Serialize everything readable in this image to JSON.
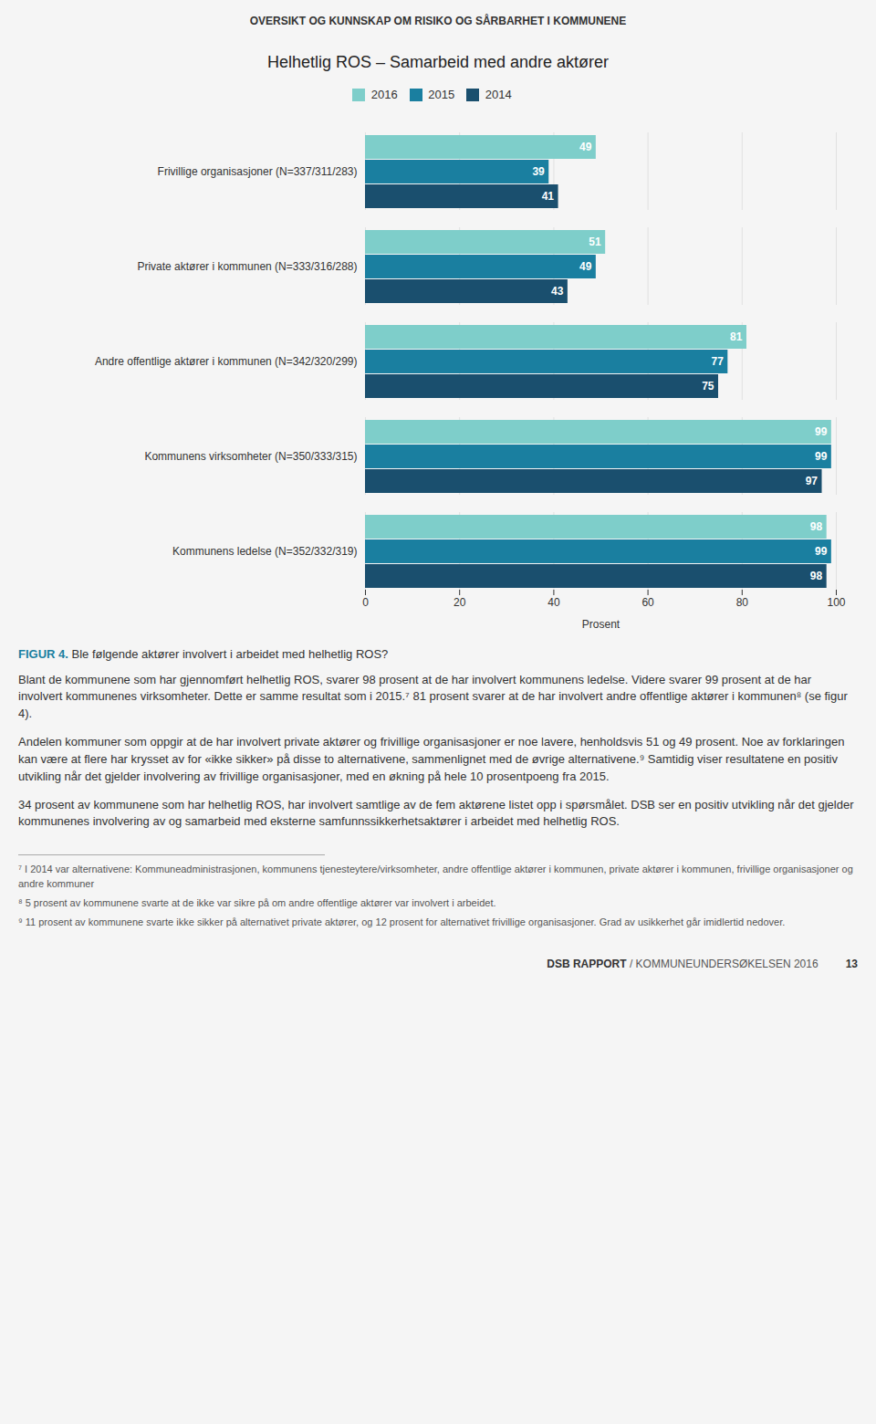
{
  "chart_data": {
    "type": "bar",
    "orientation": "horizontal",
    "title": "Helhetlig ROS – Samarbeid med andre aktører",
    "categories": [
      "Kommunens ledelse (N=352/332/319)",
      "Kommunens virksomheter (N=350/333/315)",
      "Andre offentlige aktører i kommunen (N=342/320/299)",
      "Private aktører i kommunen (N=333/316/288)",
      "Frivillige organisasjoner (N=337/311/283)"
    ],
    "series": [
      {
        "name": "2016",
        "color": "#7ececa",
        "values": [
          98,
          99,
          81,
          51,
          49
        ]
      },
      {
        "name": "2015",
        "color": "#1a7fa0",
        "values": [
          99,
          99,
          77,
          49,
          39
        ]
      },
      {
        "name": "2014",
        "color": "#1a4f6e",
        "values": [
          98,
          97,
          75,
          43,
          41
        ]
      }
    ],
    "xlim": [
      0,
      100
    ],
    "xticks": [
      0,
      20,
      40,
      60,
      80,
      100
    ],
    "xlabel": "Prosent",
    "grid": true,
    "legend": "top",
    "data_labels": true,
    "annotations": [
      "OVERSIKT OG KUNNSKAP OM RISIKO OG SÅRBARHET I KOMMUNENE",
      "FIGUR 4.",
      " Ble følgende aktører involvert i arbeidet med helhetlig ROS?",
      "Blant de kommunene som har gjennomført helhetlig ROS, svarer 98 prosent at de har involvert kommunens ledelse. Videre svarer 99 prosent at de har involvert kommunenes virksomheter. Dette er samme resultat som i 2015.⁷ 81 prosent svarer at de har involvert andre offentlige aktører i kommunen⁸ (se figur 4).",
      "Andelen kommuner som oppgir at de har involvert private aktører og frivillige organisasjoner er noe lavere, henholdsvis 51 og 49 prosent. Noe av forklaringen kan være at flere har krysset av for «ikke sikker» på disse to alternativene, sammenlignet med de øvrige alternativene.⁹ Samtidig viser resultatene en positiv utvikling når det gjelder involvering av frivillige organisasjoner, med en økning på hele 10 prosentpoeng fra 2015.",
      "34 prosent av kommunene som har helhetlig ROS, har involvert samtlige av de fem aktørene listet opp i spørsmålet. DSB ser en positiv utvikling når det gjelder kommunenes involvering av og samarbeid med eksterne samfunnssikkerhetsaktører i arbeidet med helhetlig ROS.",
      "⁷  I 2014 var alternativene: Kommuneadministrasjonen, kommunens tjenesteytere/virksomheter, andre offentlige aktører i kommunen, private aktører i kommunen, frivillige organisasjoner og andre kommuner",
      "⁸  5 prosent av kommunene svarte at de ikke var sikre på om andre offentlige aktører var involvert i arbeidet.",
      "⁹  11 prosent av kommunene svarte ikke sikker på alternativet private aktører, og 12 prosent for alternativet frivillige organisasjoner. Grad av usikkerhet går imidlertid nedover.",
      "DSB RAPPORT",
      " / KOMMUNEUNDERSØKELSEN 2016",
      "13"
    ]
  }
}
